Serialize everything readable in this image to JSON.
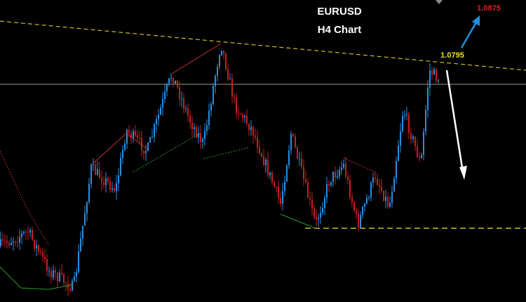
{
  "header": {
    "title": "EURUSD",
    "subtitle": "H4 Chart"
  },
  "annotations": {
    "target": "1.0875",
    "level": "1.0795"
  }
}
